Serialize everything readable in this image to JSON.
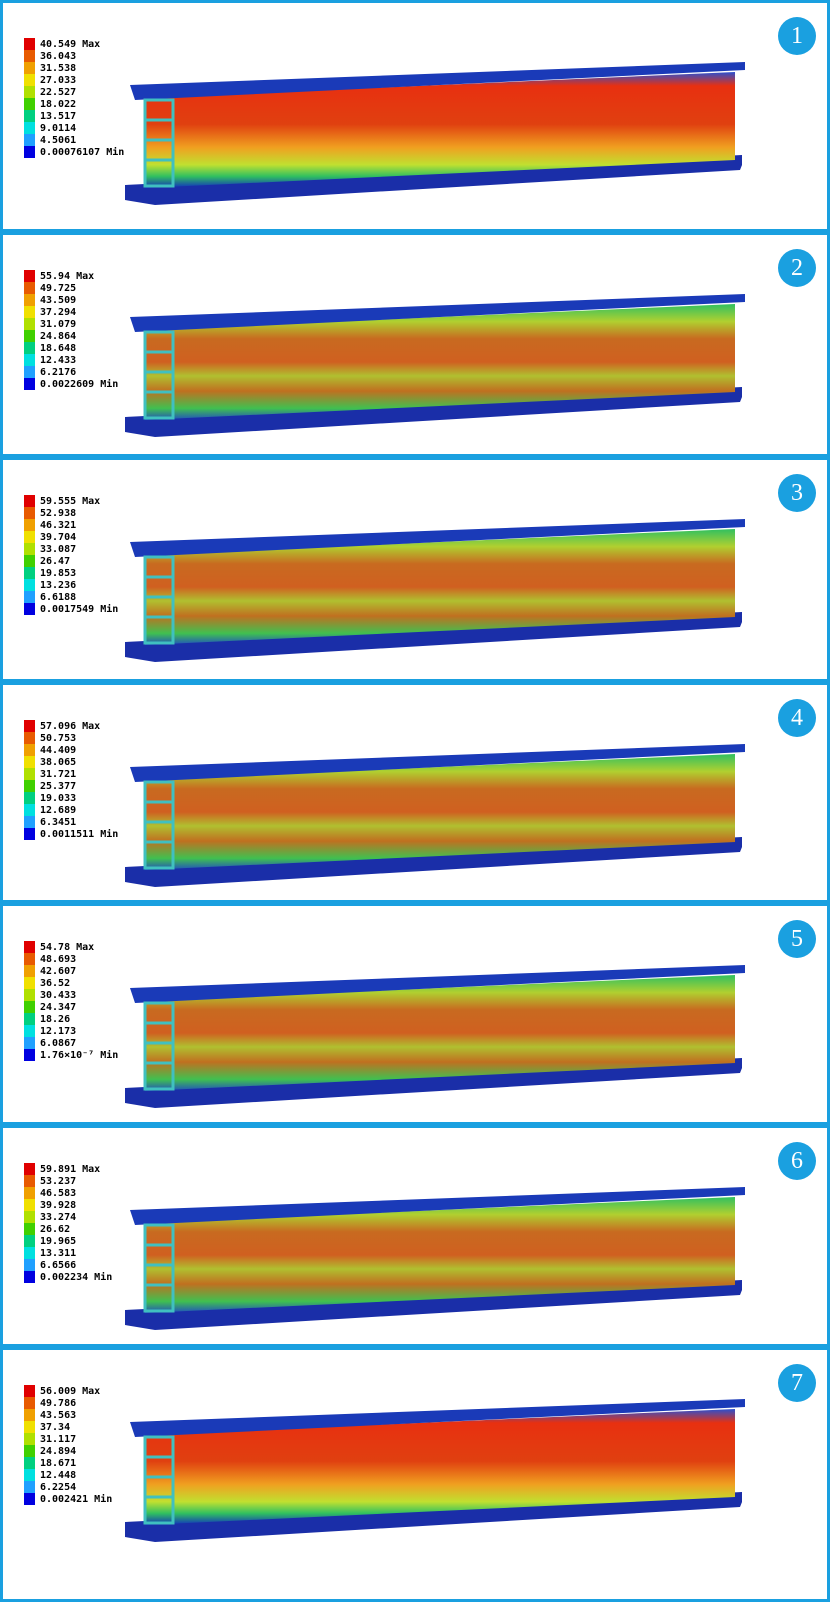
{
  "panels": [
    {
      "number": "1",
      "legend": [
        "40.549 Max",
        "36.043",
        "31.538",
        "27.033",
        "22.527",
        "18.022",
        "13.517",
        "9.0114",
        "4.5061",
        "0.00076107 Min"
      ]
    },
    {
      "number": "2",
      "legend": [
        "55.94 Max",
        "49.725",
        "43.509",
        "37.294",
        "31.079",
        "24.864",
        "18.648",
        "12.433",
        "6.2176",
        "0.0022609 Min"
      ]
    },
    {
      "number": "3",
      "legend": [
        "59.555 Max",
        "52.938",
        "46.321",
        "39.704",
        "33.087",
        "26.47",
        "19.853",
        "13.236",
        "6.6188",
        "0.0017549 Min"
      ]
    },
    {
      "number": "4",
      "legend": [
        "57.096 Max",
        "50.753",
        "44.409",
        "38.065",
        "31.721",
        "25.377",
        "19.033",
        "12.689",
        "6.3451",
        "0.0011511 Min"
      ]
    },
    {
      "number": "5",
      "legend": [
        "54.78 Max",
        "48.693",
        "42.607",
        "36.52",
        "30.433",
        "24.347",
        "18.26",
        "12.173",
        "6.0867",
        "1.76×10⁻⁷ Min"
      ]
    },
    {
      "number": "6",
      "legend": [
        "59.891 Max",
        "53.237",
        "46.583",
        "39.928",
        "33.274",
        "26.62",
        "19.965",
        "13.311",
        "6.6566",
        "0.002234 Min"
      ]
    },
    {
      "number": "7",
      "legend": [
        "56.009 Max",
        "49.786",
        "43.563",
        "37.34",
        "31.117",
        "24.894",
        "18.671",
        "12.448",
        "6.2254",
        "0.002421 Min"
      ]
    }
  ]
}
